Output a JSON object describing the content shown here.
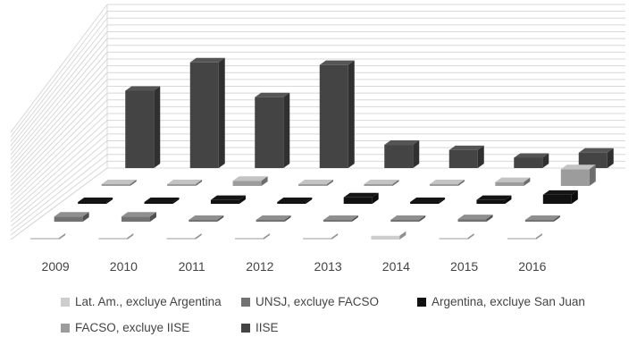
{
  "chart_data": {
    "type": "bar",
    "subtype": "3d-grouped-column",
    "title": "",
    "xlabel": "",
    "ylabel": "",
    "categories": [
      "2009",
      "2010",
      "2011",
      "2012",
      "2013",
      "2014",
      "2015",
      "2016"
    ],
    "ylim": [
      0,
      12
    ],
    "grid": true,
    "legend_position": "bottom",
    "series": [
      {
        "name": "Lat. Am., excluye Argentina",
        "color": "#cdcdcd",
        "values": [
          0,
          0,
          0,
          0,
          0,
          0.3,
          0,
          0
        ]
      },
      {
        "name": "UNSJ, excluye FACSO",
        "color": "#727272",
        "values": [
          0.4,
          0.4,
          0,
          0,
          0,
          0,
          0.2,
          0
        ]
      },
      {
        "name": "Argentina, excluye San Juan",
        "color": "#111111",
        "values": [
          0,
          0,
          0.3,
          0,
          0.5,
          0,
          0.3,
          0.7
        ]
      },
      {
        "name": "FACSO, excluye IISE",
        "color": "#9c9c9c",
        "values": [
          0,
          0,
          0.4,
          0,
          0,
          0,
          0.3,
          1.3
        ]
      },
      {
        "name": "IISE",
        "color": "#444444",
        "values": [
          6,
          8.2,
          5.5,
          8,
          1.8,
          1.4,
          0.8,
          1.2
        ]
      }
    ]
  }
}
